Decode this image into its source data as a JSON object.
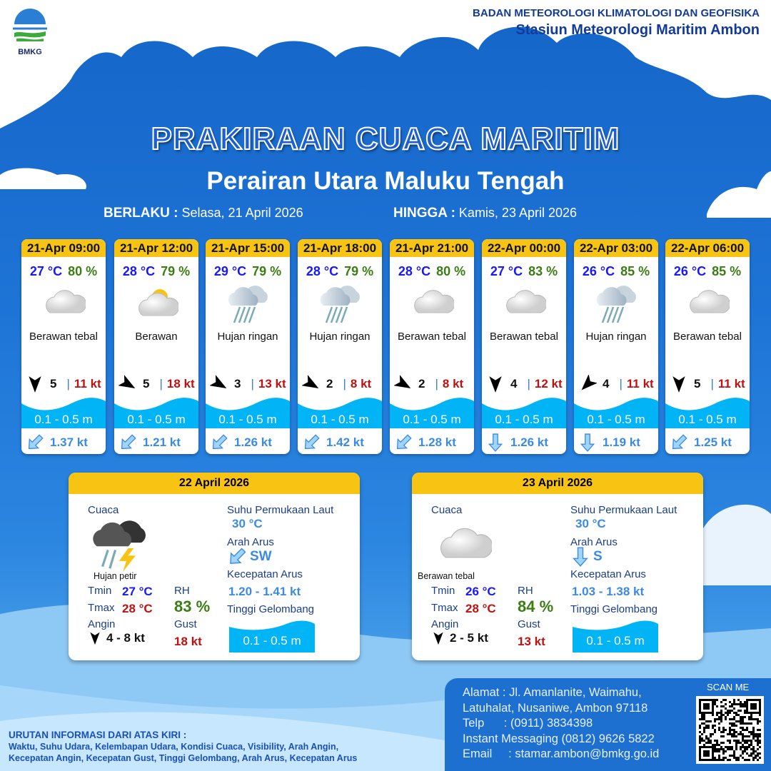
{
  "header": {
    "logo_text": "BMKG",
    "org_line1": "BADAN METEOROLOGI KLIMATOLOGI DAN GEOFISIKA",
    "org_line2": "Stasiun Meteorologi Maritim Ambon"
  },
  "title": "PRAKIRAAN CUACA MARITIM",
  "subtitle": "Perairan Utara Maluku Tengah",
  "validity": {
    "from_label": "BERLAKU :",
    "from_value": "Selasa, 21 April 2026",
    "to_label": "HINGGA :",
    "to_value": "Kamis, 23 April 2026"
  },
  "colors": {
    "header_yellow": "#f8c414",
    "temp": "#1818ff",
    "rh": "#3b7d14",
    "gust": "#c01010",
    "wave": "#00b4f5",
    "current": "#3a8ae6"
  },
  "forecasts": [
    {
      "time": "21-Apr 09:00",
      "temp": "27 °C",
      "rh": "80 %",
      "icon": "overcast-cloud-icon",
      "weather": "Berawan tebal",
      "wind_dir_deg": 90,
      "wind": "5",
      "gust": "11 kt",
      "wave": "0.1 - 0.5 m",
      "current_dir": "SW",
      "current": "1.37 kt"
    },
    {
      "time": "21-Apr 12:00",
      "temp": "28 °C",
      "rh": "79 %",
      "icon": "partly-cloudy-icon",
      "weather": "Berawan",
      "wind_dir_deg": 30,
      "wind": "5",
      "gust": "18 kt",
      "wave": "0.1 - 0.5 m",
      "current_dir": "SW",
      "current": "1.21 kt"
    },
    {
      "time": "21-Apr 15:00",
      "temp": "29 °C",
      "rh": "79 %",
      "icon": "light-rain-icon",
      "weather": "Hujan ringan",
      "wind_dir_deg": 30,
      "wind": "3",
      "gust": "13 kt",
      "wave": "0.1 - 0.5 m",
      "current_dir": "SW",
      "current": "1.26 kt"
    },
    {
      "time": "21-Apr 18:00",
      "temp": "28 °C",
      "rh": "79 %",
      "icon": "light-rain-icon",
      "weather": "Hujan ringan",
      "wind_dir_deg": 30,
      "wind": "2",
      "gust": "8 kt",
      "wave": "0.1 - 0.5 m",
      "current_dir": "SW",
      "current": "1.42 kt"
    },
    {
      "time": "21-Apr 21:00",
      "temp": "28 °C",
      "rh": "80 %",
      "icon": "overcast-cloud-icon",
      "weather": "Berawan tebal",
      "wind_dir_deg": 30,
      "wind": "2",
      "gust": "8 kt",
      "wave": "0.1 - 0.5 m",
      "current_dir": "SW",
      "current": "1.28 kt"
    },
    {
      "time": "22-Apr 00:00",
      "temp": "27 °C",
      "rh": "83 %",
      "icon": "overcast-cloud-icon",
      "weather": "Berawan tebal",
      "wind_dir_deg": 90,
      "wind": "4",
      "gust": "12 kt",
      "wave": "0.1 - 0.5 m",
      "current_dir": "S",
      "current": "1.26 kt"
    },
    {
      "time": "22-Apr 03:00",
      "temp": "26 °C",
      "rh": "85 %",
      "icon": "light-rain-icon",
      "weather": "Hujan ringan",
      "wind_dir_deg": 135,
      "wind": "4",
      "gust": "11 kt",
      "wave": "0.1 - 0.5 m",
      "current_dir": "S",
      "current": "1.19 kt"
    },
    {
      "time": "22-Apr 06:00",
      "temp": "26 °C",
      "rh": "85 %",
      "icon": "overcast-cloud-icon",
      "weather": "Berawan tebal",
      "wind_dir_deg": 90,
      "wind": "5",
      "gust": "11 kt",
      "wave": "0.1 - 0.5 m",
      "current_dir": "SW",
      "current": "1.25 kt"
    }
  ],
  "daily": [
    {
      "date": "22 April 2026",
      "weather_label": "Cuaca",
      "icon": "thunderstorm-icon",
      "weather": "Hujan petir",
      "tmin_label": "Tmin",
      "tmin": "27 °C",
      "tmax_label": "Tmax",
      "tmax": "28 °C",
      "rh_label": "RH",
      "rh": "83 %",
      "wind_label": "Angin",
      "wind": "4 - 8 kt",
      "gust_label": "Gust",
      "gust": "18 kt",
      "sst_label": "Suhu Permukaan Laut",
      "sst": "30 °C",
      "current_dir_label": "Arah Arus",
      "current_dir": "SW",
      "current_speed_label": "Kecepatan Arus",
      "current_speed": "1.20  - 1.41 kt",
      "wave_label": "Tinggi Gelombang",
      "wave": "0.1 - 0.5 m"
    },
    {
      "date": "23 April 2026",
      "weather_label": "Cuaca",
      "icon": "overcast-cloud-icon",
      "weather": "Berawan tebal",
      "tmin_label": "Tmin",
      "tmin": "26 °C",
      "tmax_label": "Tmax",
      "tmax": "28 °C",
      "rh_label": "RH",
      "rh": "84 %",
      "wind_label": "Angin",
      "wind": "2 - 5 kt",
      "gust_label": "Gust",
      "gust": "13 kt",
      "sst_label": "Suhu Permukaan Laut",
      "sst": "30 °C",
      "current_dir_label": "Arah Arus",
      "current_dir": "S",
      "current_speed_label": "Kecepatan Arus",
      "current_speed": "1.03  - 1.38 kt",
      "wave_label": "Tinggi Gelombang",
      "wave": "0.1 - 0.5 m"
    }
  ],
  "footer": {
    "address_1": "Alamat : Jl. Amanlanite, Waimahu,",
    "address_2": "Latuhalat, Nusaniwe, Ambon 97118",
    "phone": "Telp      : (0911) 3834398",
    "im": "Instant Messaging (0812) 9626 5822",
    "email": "Email     : stamar.ambon@bmkg.go.id",
    "scan_label": "SCAN ME",
    "note_title": "URUTAN INFORMASI DARI ATAS KIRI :",
    "note_1": "Waktu, Suhu Udara, Kelembapan Udara, Kondisi Cuaca, Visibility, Arah Angin,",
    "note_2": "Kecepatan Angin, Kecepatan Gust, Tinggi Gelombang, Arah Arus, Kecepatan Arus"
  }
}
